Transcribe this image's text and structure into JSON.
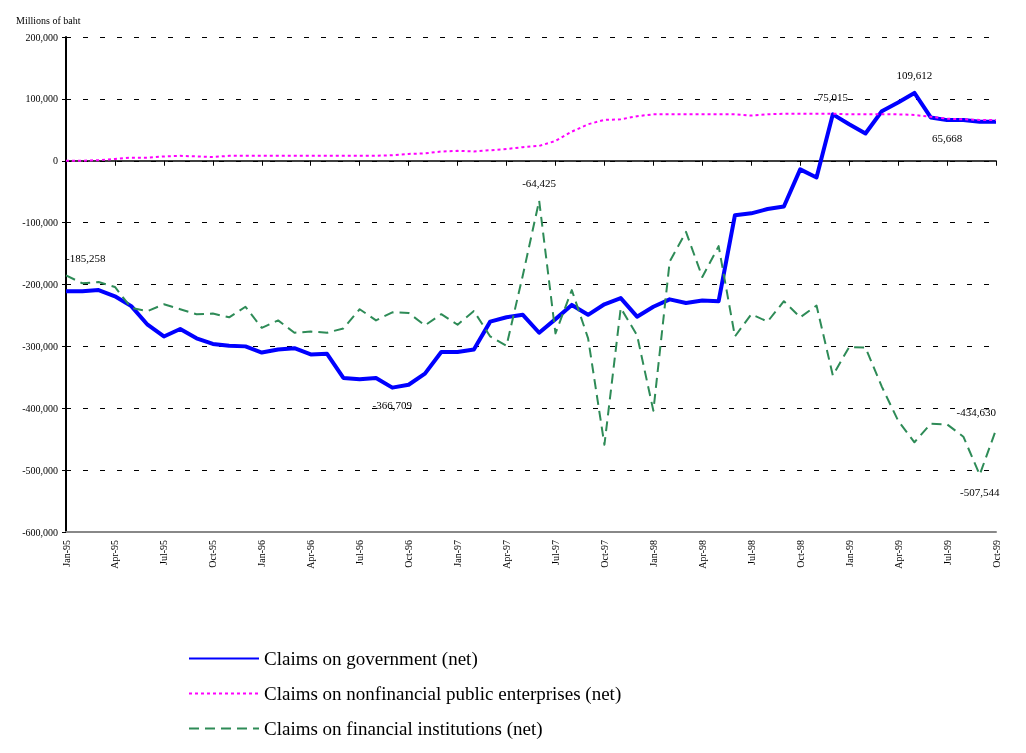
{
  "chart_data": {
    "type": "line",
    "ylabel": "Millions of baht",
    "categories": [
      "Jan-95",
      null,
      null,
      "Apr-95",
      null,
      null,
      "Jul-95",
      null,
      null,
      "Oct-95",
      null,
      null,
      "Jan-96",
      null,
      null,
      "Apr-96",
      null,
      null,
      "Jul-96",
      null,
      null,
      "Oct-96",
      null,
      null,
      "Jan-97",
      null,
      null,
      "Apr-97",
      null,
      null,
      "Jul-97",
      null,
      null,
      "Oct-97",
      null,
      null,
      "Jan-98",
      null,
      null,
      "Apr-98",
      null,
      null,
      "Jul-98",
      null,
      null,
      "Oct-98",
      null,
      null,
      "Jan-99",
      null,
      null,
      "Apr-99",
      null,
      null,
      "Jul-99",
      null,
      null,
      "Oct-99"
    ],
    "ylim": [
      -600000,
      200000
    ],
    "yticks": [
      {
        "value": -600000,
        "label": "-600,000"
      },
      {
        "value": -500000,
        "label": "-500,000"
      },
      {
        "value": -400000,
        "label": "-400,000"
      },
      {
        "value": -300000,
        "label": "-300,000"
      },
      {
        "value": -200000,
        "label": "-200,000"
      },
      {
        "value": -100000,
        "label": "-100,000"
      },
      0,
      {
        "value": 100000,
        "label": "100,000"
      },
      {
        "value": 200000,
        "label": "200,000"
      }
    ],
    "grid": "y",
    "legend": "bottom",
    "series": [
      {
        "name": "Claims on government (net)",
        "color": "#0000ff",
        "line_style": "solid",
        "values": [
          -211000,
          -211000,
          -209000,
          -219000,
          -235000,
          -265000,
          -284000,
          -272000,
          -287000,
          -296000,
          -299000,
          -300000,
          -310000,
          -305000,
          -303000,
          -313000,
          -312000,
          -351000,
          -353000,
          -351000,
          -366709,
          -362000,
          -344000,
          -309000,
          -309000,
          -305000,
          -260000,
          -253000,
          -249000,
          -278000,
          -256000,
          -233000,
          -249000,
          -232000,
          -222000,
          -252000,
          -236000,
          -224000,
          -230000,
          -226000,
          -227000,
          -88000,
          -85000,
          -78000,
          -74000,
          -14000,
          -27000,
          75015,
          59000,
          44000,
          80000,
          94000,
          109612,
          70000,
          65668,
          66000,
          63000,
          63000
        ],
        "value_labels": [
          null,
          null,
          null,
          null,
          null,
          null,
          null,
          null,
          null,
          null,
          null,
          null,
          null,
          null,
          null,
          null,
          null,
          null,
          null,
          null,
          "-366,709",
          null,
          null,
          null,
          null,
          null,
          null,
          null,
          null,
          null,
          null,
          null,
          null,
          null,
          null,
          null,
          null,
          null,
          null,
          null,
          null,
          null,
          null,
          null,
          null,
          null,
          null,
          "75,015",
          null,
          null,
          null,
          null,
          "109,612",
          null,
          "65,668",
          null,
          null,
          null
        ]
      },
      {
        "name": "Claims on nonfinancial public enterprises (net)",
        "color": "#ff00ff",
        "line_style": "dotted",
        "values": [
          0,
          0,
          1000,
          3000,
          5000,
          5000,
          7000,
          8000,
          7000,
          6000,
          8000,
          8000,
          8000,
          8000,
          8000,
          8000,
          8000,
          8000,
          8000,
          8000,
          9000,
          11000,
          12000,
          15000,
          16000,
          15000,
          17000,
          19000,
          22000,
          24000,
          32000,
          47000,
          59000,
          66000,
          67000,
          72000,
          75000,
          75000,
          75000,
          75000,
          75000,
          75000,
          73000,
          75000,
          76000,
          76000,
          76000,
          76000,
          75000,
          75000,
          75000,
          75000,
          74000,
          71000,
          68000,
          67000,
          66000,
          66000
        ]
      },
      {
        "name": "Claims on financial institutions (net)",
        "color": "#2e8b57",
        "line_style": "dashed",
        "values": [
          -185258,
          -198000,
          -196000,
          -204000,
          -238000,
          -243000,
          -232000,
          -240000,
          -248000,
          -247000,
          -253000,
          -236000,
          -270000,
          -258000,
          -278000,
          -276000,
          -278000,
          -271000,
          -240000,
          -258000,
          -245000,
          -246000,
          -266000,
          -248000,
          -265000,
          -243000,
          -284000,
          -299000,
          -185000,
          -64425,
          -279000,
          -209000,
          -287000,
          -459000,
          -238000,
          -282000,
          -404000,
          -163000,
          -115000,
          -188000,
          -138000,
          -284000,
          -248000,
          -260000,
          -227000,
          -253000,
          -234000,
          -347000,
          -301000,
          -302000,
          -365000,
          -420000,
          -455000,
          -425000,
          -426000,
          -446000,
          -507544,
          -434630
        ],
        "value_labels": [
          "-185,258",
          null,
          null,
          null,
          null,
          null,
          null,
          null,
          null,
          null,
          null,
          null,
          null,
          null,
          null,
          null,
          null,
          null,
          null,
          null,
          null,
          null,
          null,
          null,
          null,
          null,
          null,
          null,
          null,
          "-64,425",
          null,
          null,
          null,
          null,
          null,
          null,
          null,
          null,
          null,
          null,
          null,
          null,
          null,
          null,
          null,
          null,
          null,
          null,
          null,
          null,
          null,
          null,
          null,
          null,
          null,
          null,
          "-507,544",
          "-434,630"
        ]
      }
    ]
  }
}
